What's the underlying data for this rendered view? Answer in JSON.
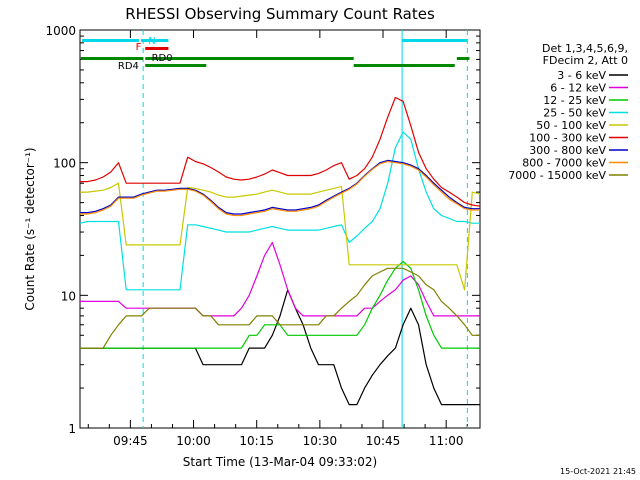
{
  "chart_data": {
    "type": "line",
    "title": "RHESSI Observing Summary Count Rates",
    "xlabel": "Start Time (13-Mar-04 09:33:02)",
    "ylabel": "Count Rate (s⁻¹ detector⁻¹)",
    "yscale": "log",
    "ylim": [
      1,
      1000
    ],
    "xlim_minutes": [
      0,
      95
    ],
    "x_ticks": [
      "09:45",
      "10:00",
      "10:15",
      "10:30",
      "10:45",
      "11:00"
    ],
    "y_ticks": [
      "1",
      "10",
      "100",
      "1000"
    ],
    "legend_header": [
      "Det 1,3,4,5,6,9,",
      "FDecim 2, Att 0"
    ],
    "legend_position": "right",
    "footer_date": "15-Oct-2021 21:45",
    "markers": {
      "N": "N",
      "F": "F",
      "RD0": "RD0",
      "RD4": "RD4",
      "colors": {
        "night": "#00d8e8",
        "flare": "#e00000",
        "saa": "#008800"
      }
    },
    "series": [
      {
        "name": "3 - 6 keV",
        "color": "#000000",
        "values": [
          4,
          4,
          4,
          4,
          4,
          4,
          4,
          4,
          4,
          4,
          4,
          4,
          4,
          4,
          4,
          4,
          3,
          3,
          3,
          3,
          3,
          3,
          4,
          4,
          4,
          5,
          7,
          11,
          8,
          6,
          4,
          3,
          3,
          3,
          2,
          1.5,
          1.5,
          2,
          2.5,
          3,
          3.5,
          4,
          6,
          8,
          6,
          3,
          2,
          1.5,
          1.5,
          1.5,
          1.5,
          1.5,
          1.5
        ]
      },
      {
        "name": "6 - 12 keV",
        "color": "#e000e0",
        "values": [
          9,
          9,
          9,
          9,
          9,
          9,
          8,
          8,
          8,
          8,
          8,
          8,
          8,
          8,
          8,
          8,
          7,
          7,
          7,
          7,
          7,
          8,
          10,
          14,
          20,
          25,
          17,
          11,
          8,
          7,
          7,
          7,
          7,
          7,
          7,
          7,
          7,
          8,
          8,
          9,
          10,
          11,
          13,
          14,
          12,
          9,
          7,
          7,
          7,
          7,
          7,
          7,
          7
        ]
      },
      {
        "name": "12 - 25 keV",
        "color": "#00c800",
        "values": [
          4,
          4,
          4,
          4,
          4,
          4,
          4,
          4,
          4,
          4,
          4,
          4,
          4,
          4,
          4,
          4,
          4,
          4,
          4,
          4,
          4,
          4,
          5,
          5,
          6,
          6,
          6,
          5,
          5,
          5,
          5,
          5,
          5,
          5,
          5,
          5,
          5,
          6,
          8,
          10,
          13,
          16,
          18,
          16,
          11,
          7,
          5,
          4,
          4,
          4,
          4,
          4,
          4
        ]
      },
      {
        "name": "25 - 50 keV",
        "color": "#00e0e0",
        "values": [
          35,
          36,
          36,
          36,
          36,
          36,
          11,
          11,
          11,
          11,
          11,
          11,
          11,
          11,
          34,
          34,
          33,
          32,
          31,
          30,
          30,
          30,
          30,
          31,
          32,
          33,
          32,
          31,
          31,
          31,
          31,
          31,
          32,
          33,
          34,
          25,
          28,
          32,
          36,
          45,
          70,
          130,
          170,
          150,
          90,
          60,
          45,
          40,
          38,
          36,
          36,
          35,
          35
        ]
      },
      {
        "name": "50 - 100 keV",
        "color": "#c8c800",
        "values": [
          60,
          60,
          61,
          62,
          65,
          70,
          24,
          24,
          24,
          24,
          24,
          24,
          24,
          24,
          65,
          64,
          62,
          60,
          57,
          55,
          55,
          56,
          57,
          58,
          60,
          62,
          60,
          58,
          58,
          58,
          58,
          60,
          62,
          64,
          66,
          17,
          17,
          17,
          17,
          17,
          17,
          17,
          17,
          17,
          17,
          17,
          17,
          17,
          17,
          17,
          11,
          60,
          58
        ]
      },
      {
        "name": "100 - 300 keV",
        "color": "#e00000",
        "values": [
          72,
          72,
          74,
          78,
          85,
          100,
          70,
          70,
          70,
          70,
          70,
          70,
          70,
          70,
          110,
          102,
          98,
          92,
          85,
          78,
          75,
          74,
          75,
          78,
          82,
          88,
          84,
          80,
          80,
          80,
          80,
          83,
          88,
          95,
          100,
          75,
          80,
          90,
          110,
          150,
          220,
          310,
          290,
          190,
          120,
          90,
          75,
          65,
          60,
          55,
          50,
          48,
          47
        ]
      },
      {
        "name": "300 - 800 keV",
        "color": "#0000c8",
        "values": [
          42,
          42,
          43,
          45,
          48,
          55,
          55,
          55,
          58,
          60,
          62,
          62,
          63,
          64,
          64,
          62,
          58,
          52,
          46,
          42,
          41,
          41,
          42,
          43,
          44,
          46,
          45,
          44,
          44,
          45,
          46,
          48,
          52,
          56,
          60,
          64,
          70,
          80,
          90,
          100,
          104,
          102,
          100,
          96,
          90,
          80,
          70,
          62,
          55,
          50,
          46,
          45,
          45
        ]
      },
      {
        "name": "800 - 7000 keV",
        "color": "#ff8c00",
        "values": [
          41,
          41,
          42,
          44,
          47,
          54,
          54,
          54,
          57,
          59,
          61,
          61,
          62,
          63,
          63,
          61,
          57,
          51,
          45,
          41,
          40,
          40,
          41,
          42,
          43,
          45,
          44,
          43,
          43,
          44,
          45,
          47,
          51,
          55,
          59,
          63,
          69,
          79,
          89,
          98,
          102,
          100,
          98,
          94,
          88,
          78,
          68,
          60,
          53,
          49,
          45,
          44,
          44
        ]
      },
      {
        "name": "7000 - 15000 keV",
        "color": "#808000",
        "values": [
          4,
          4,
          4,
          4,
          5,
          6,
          7,
          7,
          7,
          8,
          8,
          8,
          8,
          8,
          8,
          8,
          7,
          7,
          6,
          6,
          6,
          6,
          6,
          7,
          7,
          7,
          6,
          6,
          6,
          6,
          6,
          6,
          7,
          7,
          8,
          9,
          10,
          12,
          14,
          15,
          16,
          16,
          16,
          15,
          14,
          12,
          11,
          9,
          8,
          7,
          6,
          5,
          5
        ]
      }
    ]
  }
}
